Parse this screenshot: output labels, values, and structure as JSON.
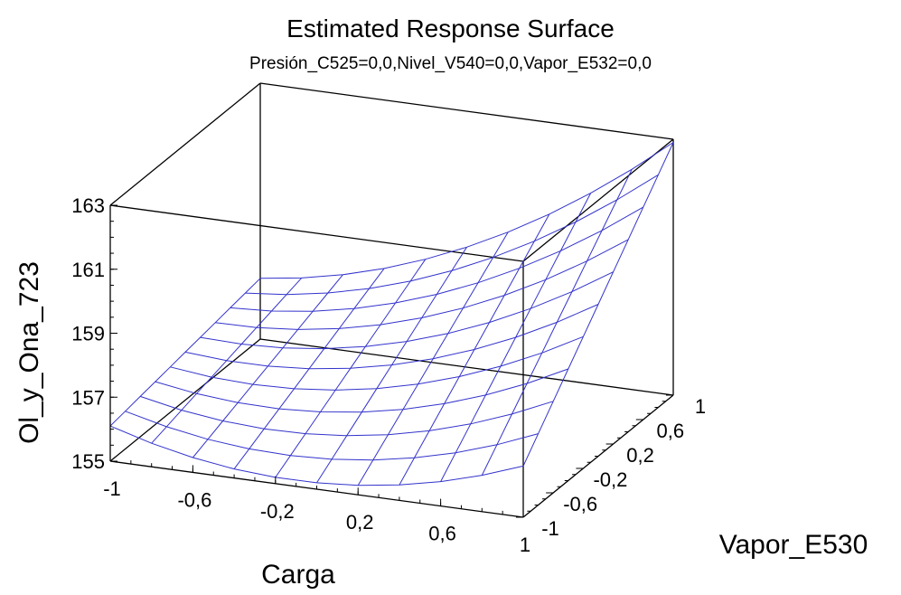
{
  "chart_data": {
    "type": "surface",
    "title": "Estimated Response Surface",
    "subtitle": "Presión_C525=0,0,Nivel_V540=0,0,Vapor_E532=0,0",
    "xlabel": "Carga",
    "ylabel": "Vapor_E530",
    "zlabel": "Ol_y_Ona_723",
    "x_ticks": [
      "-1",
      "-0,6",
      "-0,2",
      "0,2",
      "0,6",
      "1"
    ],
    "y_ticks": [
      "-1",
      "-0,6",
      "-0,2",
      "0,2",
      "0,6",
      "1"
    ],
    "z_ticks": [
      "155",
      "157",
      "159",
      "161",
      "163"
    ],
    "xlim": [
      -1,
      1
    ],
    "ylim": [
      -1,
      1
    ],
    "zlim": [
      155,
      163
    ],
    "grid_x": [
      -1,
      -0.8,
      -0.6,
      -0.4,
      -0.2,
      0,
      0.2,
      0.4,
      0.6,
      0.8,
      1
    ],
    "grid_y": [
      -1,
      -0.8,
      -0.6,
      -0.4,
      -0.2,
      0,
      0.2,
      0.4,
      0.6,
      0.8,
      1
    ],
    "corner_values": {
      "x_-1_y_-1": 156.1,
      "x_1_y_-1": 156.6,
      "x_-1_y_1": 156.9,
      "x_1_y_1": 162.9,
      "x_0_y_-1": 155.2
    },
    "surface_color": "#3333cc",
    "box_color": "#000000"
  }
}
